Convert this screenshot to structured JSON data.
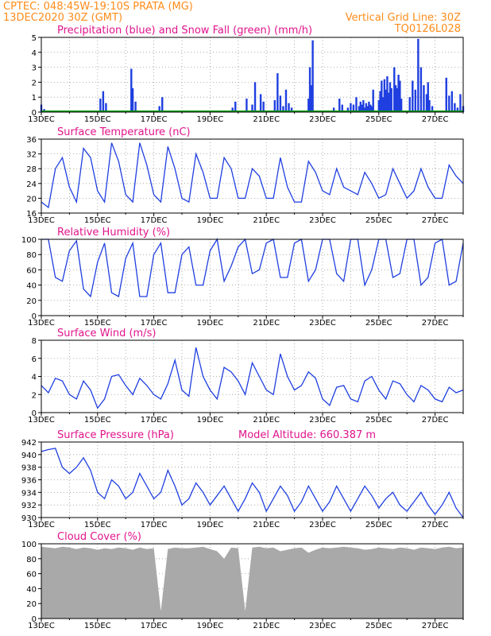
{
  "header": {
    "line1": "CPTEC:   048:45W-19:10S   PRATA (MG)",
    "line2": "13DEC2020 30Z (GMT)",
    "grid_note": "Vertical Grid Line: 30Z",
    "code": "TQ0126L028"
  },
  "colors": {
    "header": "#ff8c1a",
    "title": "#e0148c",
    "series": "#1f3fe0",
    "snow": "#00a000",
    "cloud": "#a9a9a9",
    "grid": "#9a9a9a"
  },
  "x_ticks": [
    "13DEC",
    "15DEC",
    "17DEC",
    "19DEC",
    "21DEC",
    "23DEC",
    "25DEC",
    "27DEC"
  ],
  "chart_data": [
    {
      "id": "precip",
      "type": "bar",
      "title": "Precipitation (blue) and Snow Fall (green) (mm/h)",
      "ylim": [
        0,
        5
      ],
      "yticks": [
        "0",
        "1",
        "2",
        "3",
        "4",
        "5"
      ],
      "series": [
        {
          "name": "Precipitation",
          "x_days": [
            0.0,
            0.1,
            2.1,
            2.2,
            2.3,
            3.2,
            3.25,
            3.35,
            4.2,
            4.3,
            6.8,
            6.9,
            7.3,
            7.5,
            7.6,
            7.8,
            7.9,
            8.3,
            8.4,
            8.5,
            8.6,
            8.7,
            8.8,
            8.9,
            9.5,
            9.55,
            9.6,
            9.65,
            10.4,
            10.6,
            10.7,
            10.9,
            11.0,
            11.1,
            11.2,
            11.3,
            11.35,
            11.4,
            11.45,
            11.5,
            11.55,
            11.6,
            11.65,
            11.7,
            11.75,
            11.8,
            12.0,
            12.05,
            12.1,
            12.15,
            12.2,
            12.25,
            12.3,
            12.35,
            12.4,
            12.45,
            12.55,
            12.6,
            12.65,
            12.7,
            12.75,
            12.8,
            13.1,
            13.2,
            13.3,
            13.4,
            13.5,
            13.6,
            13.7,
            13.75,
            13.8,
            13.9,
            14.4,
            14.5,
            14.6,
            14.7,
            14.8,
            14.9,
            15.0
          ],
          "values": [
            0.5,
            0.2,
            0.9,
            1.4,
            0.6,
            2.9,
            1.6,
            0.7,
            0.4,
            1.0,
            0.3,
            0.7,
            0.9,
            0.5,
            2.0,
            1.2,
            0.7,
            0.8,
            2.6,
            1.1,
            0.4,
            1.5,
            0.6,
            0.3,
            0.9,
            3.0,
            1.8,
            4.8,
            0.3,
            0.9,
            0.5,
            0.3,
            0.6,
            0.5,
            1.0,
            0.4,
            0.7,
            0.5,
            0.8,
            0.3,
            0.6,
            0.4,
            0.7,
            0.5,
            0.4,
            1.5,
            0.8,
            1.4,
            2.1,
            1.0,
            2.2,
            1.5,
            2.4,
            1.3,
            2.0,
            1.6,
            3.0,
            1.8,
            1.6,
            2.5,
            2.1,
            0.9,
            1.0,
            2.1,
            1.5,
            4.9,
            3.0,
            1.8,
            1.2,
            2.0,
            0.8,
            0.4,
            2.3,
            1.1,
            1.4,
            0.6,
            0.3,
            1.2,
            0.4
          ]
        }
      ],
      "snow_values": [
        0
      ]
    },
    {
      "id": "temp",
      "type": "line",
      "title": "Surface Temperature (nC)",
      "ylim": [
        16,
        36
      ],
      "yticks": [
        "16",
        "20",
        "24",
        "28",
        "32",
        "36"
      ],
      "x_days": [
        0.0,
        0.25,
        0.5,
        0.75,
        1.0,
        1.25,
        1.5,
        1.75,
        2.0,
        2.25,
        2.5,
        2.75,
        3.0,
        3.25,
        3.5,
        3.75,
        4.0,
        4.25,
        4.5,
        4.75,
        5.0,
        5.25,
        5.5,
        5.75,
        6.0,
        6.25,
        6.5,
        6.75,
        7.0,
        7.25,
        7.5,
        7.75,
        8.0,
        8.25,
        8.5,
        8.75,
        9.0,
        9.25,
        9.5,
        9.75,
        10.0,
        10.25,
        10.5,
        10.75,
        11.0,
        11.25,
        11.5,
        11.75,
        12.0,
        12.25,
        12.5,
        12.75,
        13.0,
        13.25,
        13.5,
        13.75,
        14.0,
        14.25,
        14.5,
        14.75,
        15.0
      ],
      "values": [
        19,
        17.5,
        28,
        31,
        23,
        19,
        33.5,
        31,
        22,
        19,
        35,
        30,
        21,
        19,
        35,
        29,
        21,
        19,
        34,
        28,
        20,
        19,
        32,
        27,
        20,
        20,
        31,
        28,
        20,
        20,
        28,
        26,
        20,
        20,
        31,
        23,
        19,
        19,
        30,
        27,
        22,
        21,
        28,
        23,
        22,
        21,
        27,
        24,
        20,
        21,
        28,
        24,
        20,
        22,
        28,
        23,
        20,
        20,
        29,
        26,
        24
      ]
    },
    {
      "id": "rh",
      "type": "line",
      "title": "Relative Humidity (%)",
      "ylim": [
        0,
        100
      ],
      "yticks": [
        "0",
        "20",
        "40",
        "60",
        "80",
        "100"
      ],
      "x_days": [
        0.0,
        0.25,
        0.5,
        0.75,
        1.0,
        1.25,
        1.5,
        1.75,
        2.0,
        2.25,
        2.5,
        2.75,
        3.0,
        3.25,
        3.5,
        3.75,
        4.0,
        4.25,
        4.5,
        4.75,
        5.0,
        5.25,
        5.5,
        5.75,
        6.0,
        6.25,
        6.5,
        6.75,
        7.0,
        7.25,
        7.5,
        7.75,
        8.0,
        8.25,
        8.5,
        8.75,
        9.0,
        9.25,
        9.5,
        9.75,
        10.0,
        10.25,
        10.5,
        10.75,
        11.0,
        11.25,
        11.5,
        11.75,
        12.0,
        12.25,
        12.5,
        12.75,
        13.0,
        13.25,
        13.5,
        13.75,
        14.0,
        14.25,
        14.5,
        14.75,
        15.0
      ],
      "values": [
        100,
        100,
        50,
        45,
        85,
        98,
        35,
        25,
        70,
        95,
        30,
        25,
        75,
        95,
        25,
        25,
        80,
        95,
        30,
        30,
        80,
        90,
        40,
        40,
        85,
        100,
        45,
        65,
        90,
        100,
        55,
        60,
        95,
        100,
        50,
        50,
        95,
        100,
        45,
        60,
        100,
        100,
        55,
        45,
        100,
        100,
        40,
        60,
        100,
        100,
        50,
        55,
        100,
        100,
        40,
        50,
        95,
        100,
        40,
        45,
        95
      ]
    },
    {
      "id": "wind",
      "type": "line",
      "title": "Surface Wind (m/s)",
      "ylim": [
        0,
        8
      ],
      "yticks": [
        "0",
        "2",
        "4",
        "6",
        "8"
      ],
      "x_days": [
        0.0,
        0.25,
        0.5,
        0.75,
        1.0,
        1.25,
        1.5,
        1.75,
        2.0,
        2.25,
        2.5,
        2.75,
        3.0,
        3.25,
        3.5,
        3.75,
        4.0,
        4.25,
        4.5,
        4.75,
        5.0,
        5.25,
        5.5,
        5.75,
        6.0,
        6.25,
        6.5,
        6.75,
        7.0,
        7.25,
        7.5,
        7.75,
        8.0,
        8.25,
        8.5,
        8.75,
        9.0,
        9.25,
        9.5,
        9.75,
        10.0,
        10.25,
        10.5,
        10.75,
        11.0,
        11.25,
        11.5,
        11.75,
        12.0,
        12.25,
        12.5,
        12.75,
        13.0,
        13.25,
        13.5,
        13.75,
        14.0,
        14.25,
        14.5,
        14.75,
        15.0
      ],
      "values": [
        3,
        2.2,
        3.8,
        3.5,
        2,
        1.5,
        3.5,
        2.5,
        0.5,
        1.5,
        4,
        4.2,
        3,
        2,
        3.8,
        3,
        2,
        1.5,
        3.2,
        5.8,
        2.5,
        1.8,
        7.2,
        4,
        2.5,
        1.5,
        5,
        4.5,
        3.5,
        2,
        5.5,
        4,
        2.5,
        2,
        6.5,
        4,
        2.5,
        3,
        4.5,
        3.8,
        1.5,
        0.8,
        2.8,
        3,
        1.5,
        1.2,
        3.5,
        4,
        2.5,
        1.5,
        3.5,
        3.2,
        2,
        1.2,
        3,
        2.5,
        1.5,
        1.2,
        2.8,
        2.2,
        2.5
      ]
    },
    {
      "id": "pressure",
      "type": "line",
      "title": "Surface Pressure (hPa)",
      "subtitle": "Model Altitude: 660.387 m",
      "ylim": [
        930,
        942
      ],
      "yticks": [
        "930",
        "932",
        "934",
        "936",
        "938",
        "940",
        "942"
      ],
      "x_days": [
        0.0,
        0.25,
        0.5,
        0.75,
        1.0,
        1.25,
        1.5,
        1.75,
        2.0,
        2.25,
        2.5,
        2.75,
        3.0,
        3.25,
        3.5,
        3.75,
        4.0,
        4.25,
        4.5,
        4.75,
        5.0,
        5.25,
        5.5,
        5.75,
        6.0,
        6.25,
        6.5,
        6.75,
        7.0,
        7.25,
        7.5,
        7.75,
        8.0,
        8.25,
        8.5,
        8.75,
        9.0,
        9.25,
        9.5,
        9.75,
        10.0,
        10.25,
        10.5,
        10.75,
        11.0,
        11.25,
        11.5,
        11.75,
        12.0,
        12.25,
        12.5,
        12.75,
        13.0,
        13.25,
        13.5,
        13.75,
        14.0,
        14.25,
        14.5,
        14.75,
        15.0
      ],
      "values": [
        940.5,
        940.8,
        941,
        938,
        937,
        938,
        939.5,
        937.5,
        934,
        933,
        936,
        935,
        933,
        934,
        937,
        935,
        933,
        934,
        937.5,
        935,
        932,
        933,
        935.5,
        934,
        932,
        933.5,
        935,
        933,
        931,
        933,
        935.5,
        934,
        931,
        933,
        935,
        933.5,
        931,
        932.5,
        935,
        933,
        931,
        932.5,
        935,
        933,
        931,
        933,
        935,
        933.5,
        931.5,
        933,
        934,
        932,
        931,
        932.5,
        934,
        932,
        930.5,
        932,
        934,
        931.5,
        930
      ]
    },
    {
      "id": "cloud",
      "type": "area",
      "title": "Cloud Cover (%)",
      "ylim": [
        0,
        100
      ],
      "yticks": [
        "0",
        "20",
        "40",
        "60",
        "80",
        "100"
      ],
      "x_days": [
        0.0,
        0.25,
        0.5,
        0.75,
        1.0,
        1.25,
        1.5,
        1.75,
        2.0,
        2.25,
        2.5,
        2.75,
        3.0,
        3.25,
        3.5,
        3.75,
        4.0,
        4.25,
        4.5,
        4.75,
        5.0,
        5.25,
        5.5,
        5.75,
        6.0,
        6.25,
        6.5,
        6.75,
        7.0,
        7.25,
        7.5,
        7.75,
        8.0,
        8.25,
        8.5,
        8.75,
        9.0,
        9.25,
        9.5,
        9.75,
        10.0,
        10.25,
        10.5,
        10.75,
        11.0,
        11.25,
        11.5,
        11.75,
        12.0,
        12.25,
        12.5,
        12.75,
        13.0,
        13.25,
        13.5,
        13.75,
        14.0,
        14.25,
        14.5,
        14.75,
        15.0
      ],
      "values": [
        96,
        95,
        94,
        96,
        95,
        93,
        95,
        94,
        92,
        94,
        93,
        95,
        94,
        92,
        95,
        93,
        94,
        10,
        93,
        95,
        94,
        94,
        95,
        96,
        93,
        90,
        80,
        95,
        94,
        10,
        95,
        96,
        94,
        95,
        90,
        92,
        94,
        95,
        88,
        92,
        95,
        94,
        95,
        96,
        95,
        94,
        92,
        93,
        95,
        94,
        93,
        95,
        94,
        92,
        95,
        94,
        93,
        95,
        96,
        94,
        95
      ]
    }
  ]
}
